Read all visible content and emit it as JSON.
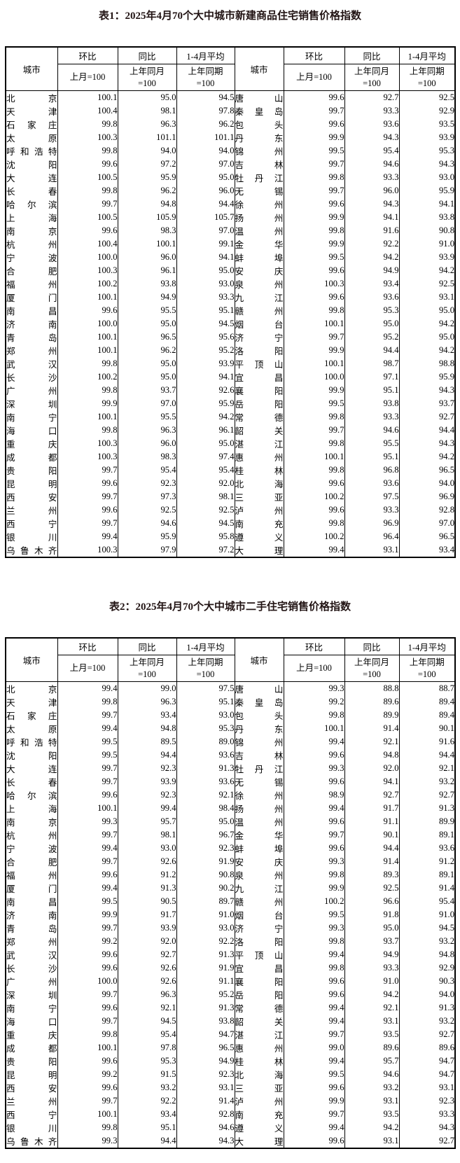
{
  "page": {
    "colors": {
      "background": "#ffffff",
      "text": "#000000",
      "title": "#221414",
      "border": "#000000"
    }
  },
  "column_headers": {
    "city": "城市",
    "mom": "环比",
    "yoy": "同比",
    "avg": "1-4月平均",
    "mom_base": "上月=100",
    "yoy_base": "上年同月\n=100",
    "avg_base": "上年同期\n=100"
  },
  "table1": {
    "title": "表1：2025年4月70个大中城市新建商品住宅销售价格指数",
    "rows": [
      [
        "北京",
        "100.1",
        "95.0",
        "94.5",
        "唐山",
        "99.6",
        "92.7",
        "92.5"
      ],
      [
        "天津",
        "100.4",
        "98.1",
        "97.8",
        "秦皇岛",
        "99.7",
        "93.3",
        "92.9"
      ],
      [
        "石家庄",
        "99.8",
        "96.3",
        "96.2",
        "包头",
        "99.6",
        "93.6",
        "93.5"
      ],
      [
        "太原",
        "100.3",
        "101.1",
        "101.1",
        "丹东",
        "99.9",
        "94.3",
        "93.9"
      ],
      [
        "呼和浩特",
        "99.8",
        "94.0",
        "94.0",
        "锦州",
        "99.5",
        "95.4",
        "95.3"
      ],
      [
        "沈阳",
        "99.6",
        "97.2",
        "97.0",
        "吉林",
        "99.7",
        "94.6",
        "94.3"
      ],
      [
        "大连",
        "100.5",
        "95.9",
        "95.0",
        "牡丹江",
        "99.8",
        "93.3",
        "93.0"
      ],
      [
        "长春",
        "99.8",
        "96.2",
        "96.0",
        "无锡",
        "99.7",
        "96.0",
        "95.9"
      ],
      [
        "哈尔滨",
        "99.7",
        "94.8",
        "94.4",
        "徐州",
        "99.6",
        "94.3",
        "94.1"
      ],
      [
        "上海",
        "100.5",
        "105.9",
        "105.7",
        "扬州",
        "99.9",
        "94.1",
        "93.8"
      ],
      [
        "南京",
        "99.6",
        "98.3",
        "97.0",
        "温州",
        "99.8",
        "91.6",
        "90.8"
      ],
      [
        "杭州",
        "100.4",
        "100.1",
        "99.1",
        "金华",
        "99.9",
        "92.2",
        "91.0"
      ],
      [
        "宁波",
        "100.0",
        "96.0",
        "94.1",
        "蚌埠",
        "99.5",
        "94.2",
        "93.9"
      ],
      [
        "合肥",
        "100.3",
        "96.1",
        "95.0",
        "安庆",
        "99.6",
        "94.9",
        "94.2"
      ],
      [
        "福州",
        "100.2",
        "93.8",
        "93.0",
        "泉州",
        "100.3",
        "93.4",
        "92.5"
      ],
      [
        "厦门",
        "100.1",
        "94.9",
        "93.3",
        "九江",
        "99.6",
        "93.6",
        "93.1"
      ],
      [
        "南昌",
        "99.6",
        "95.5",
        "95.1",
        "赣州",
        "99.8",
        "95.3",
        "95.0"
      ],
      [
        "济南",
        "100.0",
        "95.0",
        "94.5",
        "烟台",
        "100.1",
        "95.0",
        "94.2"
      ],
      [
        "青岛",
        "100.1",
        "96.5",
        "95.6",
        "济宁",
        "99.7",
        "95.2",
        "95.0"
      ],
      [
        "郑州",
        "100.1",
        "96.2",
        "95.2",
        "洛阳",
        "99.9",
        "94.4",
        "94.2"
      ],
      [
        "武汉",
        "99.8",
        "95.0",
        "93.9",
        "平顶山",
        "100.1",
        "98.7",
        "98.8"
      ],
      [
        "长沙",
        "100.2",
        "95.0",
        "94.1",
        "宜昌",
        "100.0",
        "97.1",
        "95.9"
      ],
      [
        "广州",
        "99.8",
        "93.7",
        "92.6",
        "襄阳",
        "99.9",
        "95.1",
        "94.3"
      ],
      [
        "深圳",
        "99.9",
        "97.0",
        "95.9",
        "岳阳",
        "99.5",
        "93.8",
        "93.7"
      ],
      [
        "南宁",
        "100.1",
        "95.5",
        "94.2",
        "常德",
        "99.8",
        "93.3",
        "92.7"
      ],
      [
        "海口",
        "99.8",
        "96.3",
        "96.1",
        "韶关",
        "99.7",
        "94.6",
        "94.4"
      ],
      [
        "重庆",
        "100.3",
        "96.0",
        "95.0",
        "湛江",
        "99.8",
        "95.5",
        "94.3"
      ],
      [
        "成都",
        "100.3",
        "98.3",
        "97.4",
        "惠州",
        "100.1",
        "95.1",
        "94.2"
      ],
      [
        "贵阳",
        "99.7",
        "95.4",
        "95.4",
        "桂林",
        "99.8",
        "96.8",
        "96.5"
      ],
      [
        "昆明",
        "99.6",
        "92.3",
        "92.0",
        "北海",
        "99.6",
        "93.6",
        "94.0"
      ],
      [
        "西安",
        "99.7",
        "97.3",
        "98.1",
        "三亚",
        "100.2",
        "97.5",
        "96.9"
      ],
      [
        "兰州",
        "99.6",
        "92.5",
        "92.5",
        "泸州",
        "99.6",
        "93.3",
        "92.8"
      ],
      [
        "西宁",
        "99.7",
        "94.6",
        "94.5",
        "南充",
        "99.8",
        "96.9",
        "97.0"
      ],
      [
        "银川",
        "99.4",
        "95.9",
        "95.8",
        "遵义",
        "100.2",
        "96.4",
        "96.5"
      ],
      [
        "乌鲁木齐",
        "100.3",
        "97.9",
        "97.2",
        "大理",
        "99.4",
        "93.1",
        "93.4"
      ]
    ]
  },
  "table2": {
    "title": "表2：2025年4月70个大中城市二手住宅销售价格指数",
    "rows": [
      [
        "北京",
        "99.4",
        "99.0",
        "97.5",
        "唐山",
        "99.3",
        "88.8",
        "88.7"
      ],
      [
        "天津",
        "99.8",
        "96.3",
        "95.1",
        "秦皇岛",
        "99.2",
        "89.6",
        "89.4"
      ],
      [
        "石家庄",
        "99.7",
        "93.4",
        "93.0",
        "包头",
        "99.8",
        "89.9",
        "89.4"
      ],
      [
        "太原",
        "99.4",
        "94.8",
        "95.3",
        "丹东",
        "100.1",
        "91.4",
        "90.1"
      ],
      [
        "呼和浩特",
        "99.5",
        "89.5",
        "89.0",
        "锦州",
        "99.4",
        "92.1",
        "91.6"
      ],
      [
        "沈阳",
        "99.5",
        "94.4",
        "93.6",
        "吉林",
        "99.6",
        "94.8",
        "94.4"
      ],
      [
        "大连",
        "99.7",
        "92.3",
        "91.3",
        "牡丹江",
        "99.3",
        "92.0",
        "92.1"
      ],
      [
        "长春",
        "99.7",
        "93.9",
        "93.6",
        "无锡",
        "99.6",
        "94.1",
        "93.2"
      ],
      [
        "哈尔滨",
        "99.6",
        "92.3",
        "92.1",
        "徐州",
        "98.9",
        "92.7",
        "92.7"
      ],
      [
        "上海",
        "100.1",
        "99.4",
        "98.4",
        "扬州",
        "99.4",
        "91.7",
        "91.3"
      ],
      [
        "南京",
        "99.3",
        "95.7",
        "95.0",
        "温州",
        "99.6",
        "91.1",
        "89.9"
      ],
      [
        "杭州",
        "99.7",
        "98.1",
        "96.7",
        "金华",
        "99.7",
        "90.1",
        "89.1"
      ],
      [
        "宁波",
        "99.4",
        "93.0",
        "92.3",
        "蚌埠",
        "99.6",
        "94.4",
        "93.6"
      ],
      [
        "合肥",
        "99.7",
        "92.6",
        "91.9",
        "安庆",
        "99.3",
        "91.4",
        "91.2"
      ],
      [
        "福州",
        "99.6",
        "91.2",
        "90.8",
        "泉州",
        "99.8",
        "89.3",
        "89.1"
      ],
      [
        "厦门",
        "99.4",
        "91.3",
        "90.2",
        "九江",
        "99.9",
        "92.5",
        "91.4"
      ],
      [
        "南昌",
        "99.5",
        "90.5",
        "89.7",
        "赣州",
        "100.2",
        "96.6",
        "95.4"
      ],
      [
        "济南",
        "99.9",
        "91.7",
        "91.0",
        "烟台",
        "99.5",
        "91.8",
        "91.0"
      ],
      [
        "青岛",
        "99.7",
        "93.9",
        "93.0",
        "济宁",
        "99.3",
        "95.0",
        "94.5"
      ],
      [
        "郑州",
        "99.2",
        "92.0",
        "92.2",
        "洛阳",
        "99.8",
        "93.7",
        "93.2"
      ],
      [
        "武汉",
        "99.6",
        "92.7",
        "91.3",
        "平顶山",
        "99.4",
        "94.9",
        "94.8"
      ],
      [
        "长沙",
        "99.6",
        "92.6",
        "91.9",
        "宜昌",
        "99.8",
        "93.3",
        "92.9"
      ],
      [
        "广州",
        "100.0",
        "92.6",
        "91.1",
        "襄阳",
        "99.6",
        "91.0",
        "90.3"
      ],
      [
        "深圳",
        "99.7",
        "96.3",
        "95.2",
        "岳阳",
        "99.6",
        "94.2",
        "94.0"
      ],
      [
        "南宁",
        "99.6",
        "92.1",
        "91.3",
        "常德",
        "99.4",
        "92.1",
        "91.3"
      ],
      [
        "海口",
        "99.7",
        "94.5",
        "93.8",
        "韶关",
        "99.4",
        "93.1",
        "93.2"
      ],
      [
        "重庆",
        "99.8",
        "95.4",
        "94.7",
        "湛江",
        "99.7",
        "93.5",
        "92.7"
      ],
      [
        "成都",
        "100.1",
        "97.8",
        "96.5",
        "惠州",
        "99.0",
        "89.6",
        "89.6"
      ],
      [
        "贵阳",
        "99.6",
        "95.3",
        "94.9",
        "桂林",
        "99.4",
        "95.7",
        "94.7"
      ],
      [
        "昆明",
        "99.2",
        "91.5",
        "92.3",
        "北海",
        "99.5",
        "94.6",
        "94.7"
      ],
      [
        "西安",
        "99.6",
        "93.2",
        "93.1",
        "三亚",
        "99.6",
        "93.2",
        "93.1"
      ],
      [
        "兰州",
        "99.7",
        "92.2",
        "91.4",
        "泸州",
        "99.9",
        "93.1",
        "92.3"
      ],
      [
        "西宁",
        "100.1",
        "93.4",
        "92.8",
        "南充",
        "99.7",
        "93.5",
        "93.3"
      ],
      [
        "银川",
        "99.8",
        "95.1",
        "94.6",
        "遵义",
        "99.4",
        "94.2",
        "94.3"
      ],
      [
        "乌鲁木齐",
        "99.3",
        "94.4",
        "94.3",
        "大理",
        "99.6",
        "93.1",
        "92.7"
      ]
    ]
  }
}
